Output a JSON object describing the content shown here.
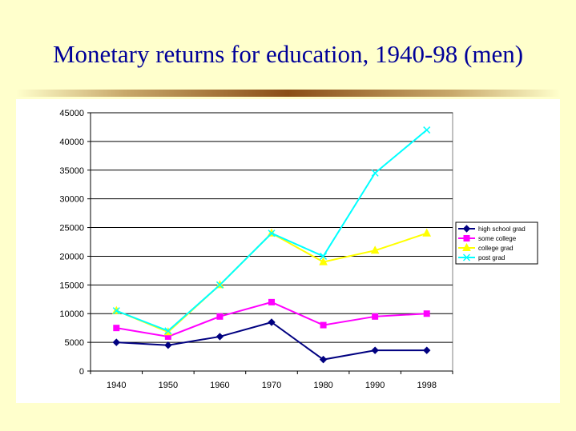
{
  "title": "Monetary returns for education, 1940-98 (men)",
  "chart_data": {
    "type": "line",
    "categories": [
      "1940",
      "1950",
      "1960",
      "1970",
      "1980",
      "1990",
      "1998"
    ],
    "ylim": [
      0,
      45000
    ],
    "yticks": [
      0,
      5000,
      10000,
      15000,
      20000,
      25000,
      30000,
      35000,
      40000,
      45000
    ],
    "grid": true,
    "legend_position": "right",
    "series": [
      {
        "name": "high school grad",
        "color": "#000080",
        "marker": "diamond",
        "values": [
          5000,
          4500,
          6000,
          8500,
          2000,
          3600,
          3600
        ]
      },
      {
        "name": "some college",
        "color": "#ff00ff",
        "marker": "square",
        "values": [
          7500,
          6000,
          9500,
          12000,
          8000,
          9500,
          10000
        ]
      },
      {
        "name": "college grad",
        "color": "#ffff00",
        "marker": "triangle",
        "values": [
          10500,
          6800,
          15000,
          24000,
          19000,
          21000,
          24000
        ]
      },
      {
        "name": "post grad",
        "color": "#00ffff",
        "marker": "x",
        "values": [
          10500,
          7000,
          15000,
          24000,
          20000,
          34500,
          42000
        ]
      }
    ]
  }
}
